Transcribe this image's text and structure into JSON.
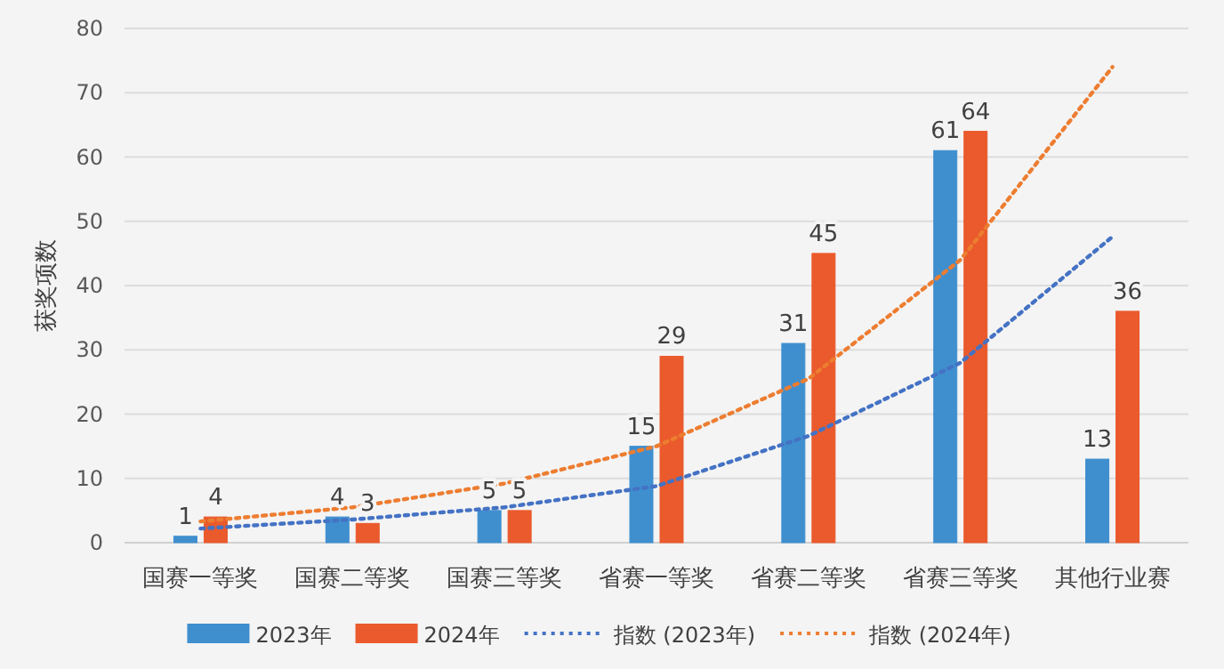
{
  "chart_data": {
    "type": "bar",
    "ylabel": "获奖项数",
    "categories": [
      "国赛一等奖",
      "国赛二等奖",
      "国赛三等奖",
      "省赛一等奖",
      "省赛二等奖",
      "省赛三等奖",
      "其他行业赛"
    ],
    "series": [
      {
        "name": "2023年",
        "color": "#3f8fcf",
        "values": [
          1,
          4,
          5,
          15,
          31,
          61,
          13
        ]
      },
      {
        "name": "2024年",
        "color": "#ea5a2c",
        "values": [
          4,
          3,
          5,
          29,
          45,
          64,
          36
        ]
      },
      {
        "name": "指数 (2023年)",
        "type": "line",
        "line_style": "dotted",
        "data_labels": false,
        "color": "#4472c4",
        "values": [
          2.2,
          3.6,
          5.5,
          8.8,
          16.6,
          28,
          47.6
        ]
      },
      {
        "name": "指数 (2024年)",
        "type": "line",
        "line_style": "dotted",
        "data_labels": false,
        "color": "#ed7d31",
        "values": [
          3.3,
          5.5,
          9.2,
          15,
          25.5,
          44,
          74
        ]
      }
    ],
    "ylim": [
      0,
      80
    ],
    "yticks": [
      0,
      10,
      20,
      30,
      40,
      50,
      60,
      70,
      80
    ],
    "grid": "y",
    "legend": "bottom",
    "data_labels": true
  }
}
